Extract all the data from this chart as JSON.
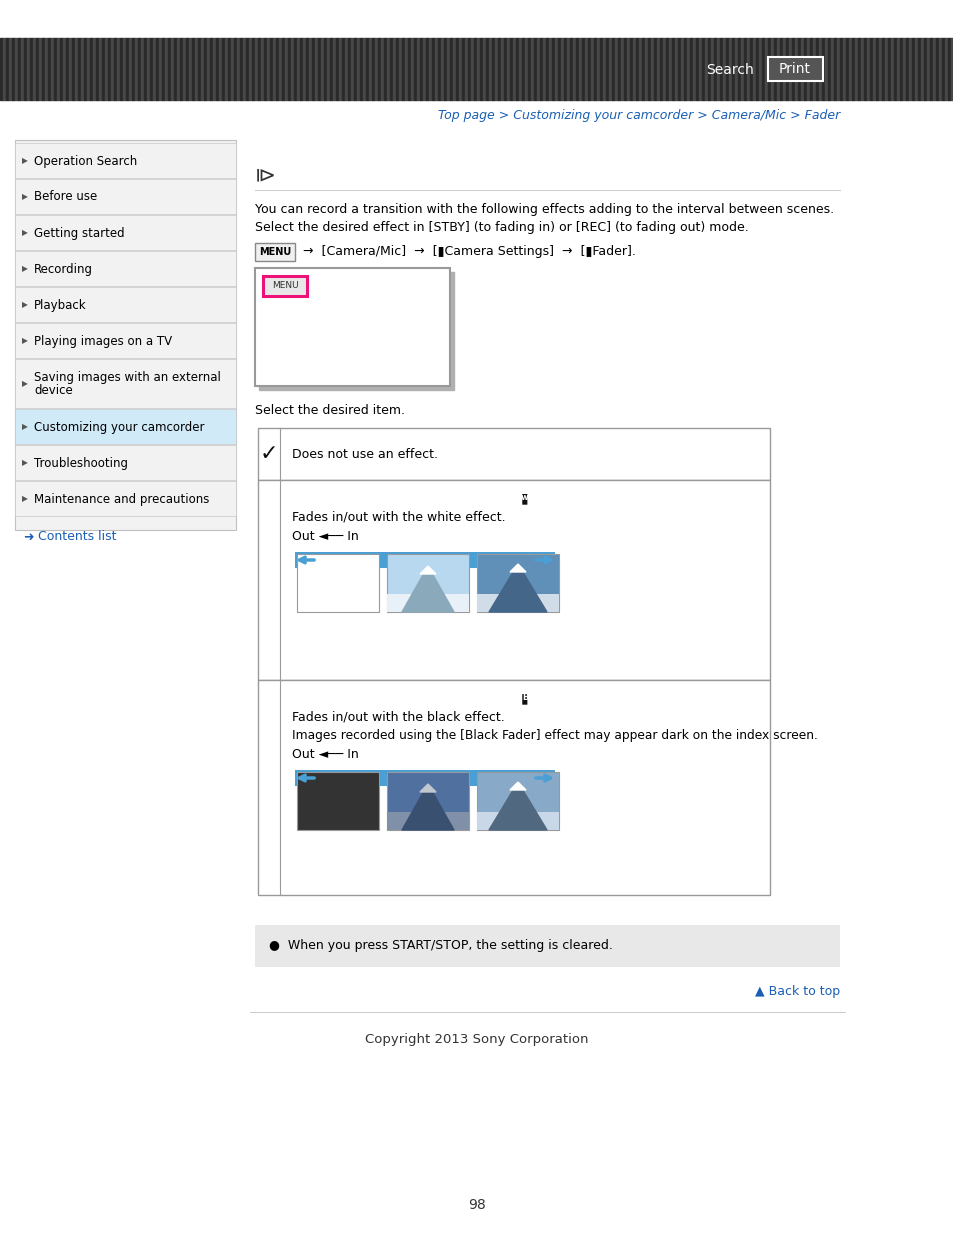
{
  "page_bg": "#ffffff",
  "header_stripe_colors": [
    "#2a2a2a",
    "#484848"
  ],
  "breadcrumb": "Top page > Customizing your camcorder > Camera/Mic > Fader",
  "breadcrumb_color": "#1a5fb4",
  "sidebar_items": [
    "Operation Search",
    "Before use",
    "Getting started",
    "Recording",
    "Playback",
    "Playing images on a TV",
    "Saving images with an external\ndevice",
    "Customizing your camcorder",
    "Troubleshooting",
    "Maintenance and precautions"
  ],
  "sidebar_highlight": "Customizing your camcorder",
  "sidebar_bg": "#f2f2f2",
  "sidebar_highlight_bg": "#d0eaf8",
  "sidebar_text_color": "#000000",
  "contents_list_color": "#1a5fb4",
  "main_intro1": "You can record a transition with the following effects adding to the interval between scenes.",
  "main_intro2": "Select the desired effect in [STBY] (to fading in) or [REC] (to fading out) mode.",
  "select_text": "Select the desired item.",
  "note_text": "●  When you press START/STOP, the setting is cleared.",
  "note_bg": "#e8e8e8",
  "back_to_top": "▲ Back to top",
  "back_to_top_color": "#1a5fb4",
  "footer_text": "Copyright 2013 Sony Corporation",
  "page_number": "98",
  "divider_color": "#cccccc",
  "table_border_color": "#999999",
  "arrow_color": "#4a9fd4"
}
